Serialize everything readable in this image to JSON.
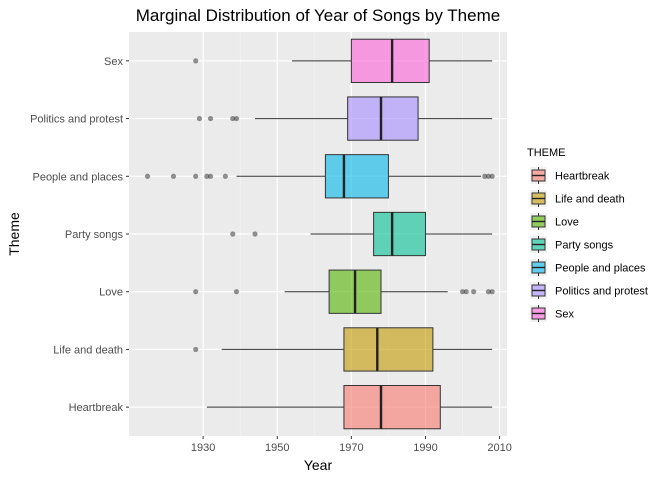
{
  "chart_data": {
    "type": "boxplot",
    "orientation": "horizontal",
    "title": "Marginal Distribution of Year of Songs by Theme",
    "xlabel": "Year",
    "ylabel": "Theme",
    "xlim": [
      1910,
      2012
    ],
    "xticks": [
      1930,
      1950,
      1970,
      1990,
      2010
    ],
    "grid": true,
    "legend": {
      "title": "THEME",
      "position": "right"
    },
    "series": [
      {
        "name": "Heartbreak",
        "color": "#F8766D",
        "whisker_low": 1931,
        "q1": 1968,
        "median": 1978,
        "q3": 1994,
        "whisker_high": 2008,
        "outliers": []
      },
      {
        "name": "Life and death",
        "color": "#C49A00",
        "whisker_low": 1935,
        "q1": 1968,
        "median": 1977,
        "q3": 1992,
        "whisker_high": 2008,
        "outliers": [
          1928
        ]
      },
      {
        "name": "Love",
        "color": "#53B400",
        "whisker_low": 1952,
        "q1": 1964,
        "median": 1971,
        "q3": 1978,
        "whisker_high": 1996,
        "outliers": [
          1928,
          1939,
          2000,
          2001,
          2003,
          2007,
          2008
        ]
      },
      {
        "name": "Party songs",
        "color": "#00C094",
        "whisker_low": 1959,
        "q1": 1976,
        "median": 1981,
        "q3": 1990,
        "whisker_high": 2008,
        "outliers": [
          1938,
          1944
        ]
      },
      {
        "name": "People and places",
        "color": "#00B6EB",
        "whisker_low": 1939,
        "q1": 1963,
        "median": 1968,
        "q3": 1980,
        "whisker_high": 2005,
        "outliers": [
          1915,
          1922,
          1928,
          1931,
          1932,
          1936,
          2006,
          2007,
          2008
        ]
      },
      {
        "name": "Politics and protest",
        "color": "#A58AFF",
        "whisker_low": 1944,
        "q1": 1969,
        "median": 1978,
        "q3": 1988,
        "whisker_high": 2008,
        "outliers": [
          1929,
          1932,
          1938,
          1939
        ]
      },
      {
        "name": "Sex",
        "color": "#FB61D7",
        "whisker_low": 1954,
        "q1": 1970,
        "median": 1981,
        "q3": 1991,
        "whisker_high": 2008,
        "outliers": [
          1928
        ]
      }
    ]
  }
}
